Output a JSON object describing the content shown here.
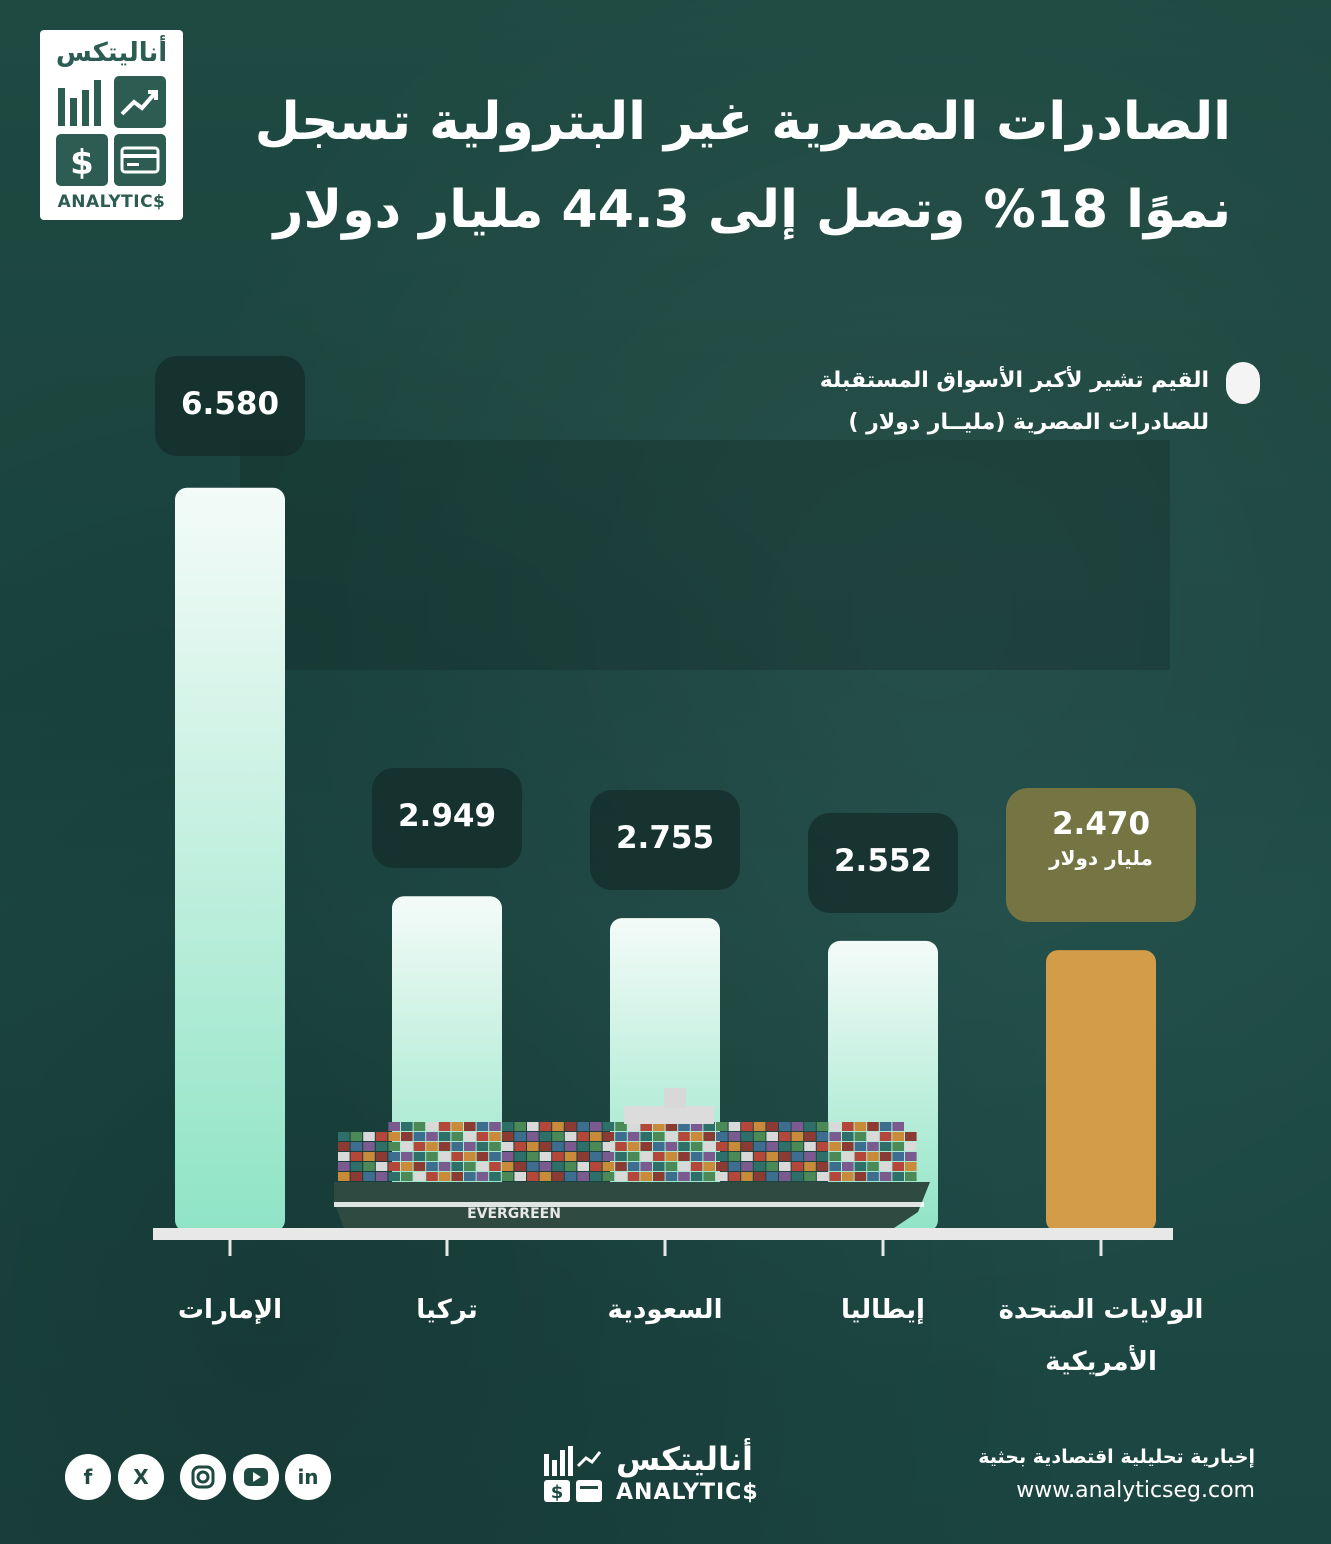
{
  "logo": {
    "arabic": "أناليتكس",
    "english": "ANALYTIC$"
  },
  "title": {
    "line1": "الصادرات المصرية غير البترولية تسجل",
    "line2": "نموًا 18% وتصل إلى 44.3 مليار دولار"
  },
  "note": {
    "line1": "القيم تشير لأكبر الأسواق المستقبلة",
    "line2": "للصادرات المصرية (مليــار دولار )"
  },
  "chart_data": {
    "type": "bar",
    "categories": [
      "الإمارات",
      "تركيا",
      "السعودية",
      "إيطاليا",
      "الولايات المتحدة الأمريكية"
    ],
    "value_labels": [
      "6.580",
      "2.949",
      "2.755",
      "2.552",
      "2.470"
    ],
    "values": [
      6.58,
      2.949,
      2.755,
      2.552,
      2.47
    ],
    "highlight_index": 4,
    "highlight_unit": "مليار دولار",
    "colors": {
      "bar": "#a8ecd4",
      "bar_top": "#f4fbf8",
      "highlight": "#d39c48",
      "axis": "#e8e8e8"
    }
  },
  "ship": {
    "hull_text": "EVERGREEN"
  },
  "footer": {
    "social": [
      "f",
      "X",
      "instagram",
      "youtube",
      "in"
    ],
    "logo_arabic": "أناليتكس",
    "logo_english": "ANALYTIC$",
    "tagline": "إخبارية تحليلية اقتصادية بحثية",
    "website": "www.analyticseg.com"
  }
}
